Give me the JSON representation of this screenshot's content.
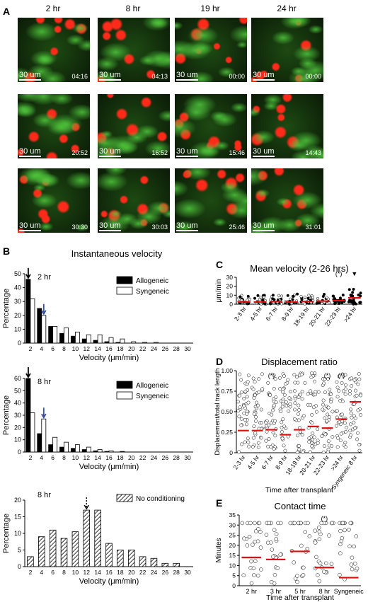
{
  "panelA": {
    "letter": "A",
    "columns": [
      "2 hr",
      "8 hr",
      "19 hr",
      "24 hr"
    ],
    "scale_label": "30 um",
    "timestamps": [
      [
        "04:16",
        "04:13",
        "00:00",
        "00:00"
      ],
      [
        "20:52",
        "16:52",
        "15:46",
        "14:43"
      ],
      [
        "30:30",
        "30:03",
        "25:46",
        "31:01"
      ]
    ]
  },
  "panelB": {
    "letter": "B",
    "title": "Instantaneous velocity",
    "ylabel": "Percentage",
    "xlabel": "Velocity (μm/min)",
    "charts": [
      {
        "type": "bar",
        "label": "2 hr",
        "categories": [
          "2",
          "4",
          "6",
          "8",
          "10",
          "12",
          "14",
          "16",
          "18",
          "20",
          "22",
          "24",
          "26",
          "28",
          "30"
        ],
        "ylim": [
          0,
          50
        ],
        "yticks": [
          "0",
          "10",
          "20",
          "30",
          "40",
          "50"
        ],
        "series": [
          {
            "name": "Allogeneic",
            "values": [
              46,
              25,
              12,
              7,
              5,
              3,
              2,
              1,
              0.5,
              0,
              0,
              0,
              0,
              0,
              0
            ]
          },
          {
            "name": "Syngeneic",
            "values": [
              32,
              20,
              12,
              11,
              8,
              6,
              6,
              4,
              3,
              1,
              0.5,
              0.5,
              0,
              0,
              0
            ]
          }
        ]
      },
      {
        "type": "bar",
        "label": "8 hr",
        "categories": [
          "2",
          "4",
          "6",
          "8",
          "10",
          "12",
          "14",
          "16",
          "18",
          "20",
          "22",
          "24",
          "26",
          "28",
          "30"
        ],
        "ylim": [
          0,
          60
        ],
        "yticks": [
          "0",
          "10",
          "20",
          "30",
          "40",
          "50",
          "60"
        ],
        "series": [
          {
            "name": "Allogeneic",
            "values": [
              60,
              15,
              6,
              4,
              3,
              2,
              1,
              0.5,
              0,
              0,
              0,
              0,
              0,
              0,
              0
            ]
          },
          {
            "name": "Syngeneic",
            "values": [
              32,
              27,
              12,
              8,
              6,
              4,
              2,
              1,
              0.5,
              0,
              0,
              0,
              0,
              0,
              0
            ]
          }
        ]
      },
      {
        "type": "bar",
        "label": "8 hr",
        "categories": [
          "2",
          "4",
          "6",
          "8",
          "10",
          "12",
          "14",
          "16",
          "18",
          "20",
          "22",
          "24",
          "26",
          "28",
          "30"
        ],
        "ylim": [
          0,
          20
        ],
        "yticks": [
          "0",
          "5",
          "10",
          "15",
          "20"
        ],
        "series": [
          {
            "name": "No conditioning",
            "values": [
              3,
              9,
              11,
              8.5,
              10.5,
              17,
              17,
              7,
              5,
              5,
              3,
              2.5,
              1,
              1,
              0
            ]
          }
        ]
      }
    ]
  },
  "panelC": {
    "letter": "C",
    "title": "Mean velocity (2-26 hrs)",
    "ylabel": "μm/min",
    "categories": [
      "2-3 hr",
      "4-5 hr",
      "6-7 hr",
      "8-9 hr",
      "18-19 hr",
      "20-21 hr",
      "22-23 hr",
      ">24 hr"
    ],
    "ylim": [
      0,
      30
    ],
    "yticks": [
      "0",
      "10",
      "20",
      "30"
    ],
    "medians": [
      2.5,
      2.5,
      3,
      2.5,
      3,
      3.5,
      4,
      7
    ],
    "annotations": [
      "(*)",
      "▼"
    ]
  },
  "panelD": {
    "letter": "D",
    "title": "Displacement ratio",
    "ylabel": "Displacement/total track length",
    "xlabel": "Time after transplant",
    "categories": [
      "2-3 hr",
      "4-5 hr",
      "6-7 hr",
      "8-9 hr",
      "18-19 hr",
      "20-21 hr",
      "22-23 hr",
      ">24 hr",
      "Syngeneic 8 hr"
    ],
    "ylim": [
      0,
      1
    ],
    "yticks": [
      "0",
      "0.25",
      "0.50",
      "0.75",
      "1.00"
    ],
    "medians": [
      0.27,
      0.27,
      0.28,
      0.22,
      0.28,
      0.32,
      0.3,
      0.41,
      0.62
    ],
    "annotations": [
      "(*)",
      "(*)",
      "(*)"
    ]
  },
  "panelE": {
    "letter": "E",
    "title": "Contact time",
    "ylabel": "Minutes",
    "xlabel": "Time after transplant",
    "categories": [
      "2 hr",
      "3 hr",
      "5 hr",
      "8 hr",
      "Syngeneic"
    ],
    "ylim": [
      0,
      35
    ],
    "yticks": [
      "0",
      "5",
      "10",
      "15",
      "20",
      "25",
      "30",
      "35"
    ],
    "medians": [
      14,
      13,
      17,
      9,
      4
    ],
    "annotations": [
      "(*)"
    ]
  }
}
